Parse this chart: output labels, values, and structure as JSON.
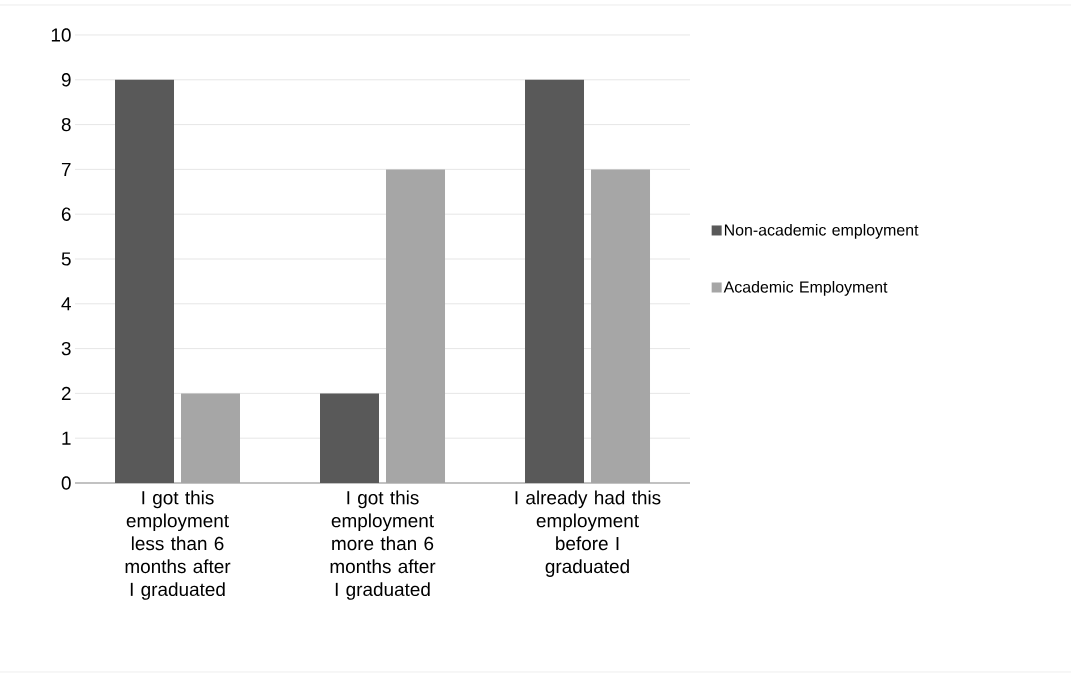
{
  "chart_data": {
    "type": "bar",
    "categories": [
      "I got this employment less than 6 months after I graduated",
      "I got this employment more than 6 months after I graduated",
      "I already had this employment before I graduated"
    ],
    "series": [
      {
        "name": "Non-academic employment",
        "color": "#595959",
        "values": [
          9,
          2,
          9
        ]
      },
      {
        "name": "Academic Employment",
        "color": "#a6a6a6",
        "values": [
          2,
          7,
          7
        ]
      }
    ],
    "ylim": [
      0,
      10
    ],
    "yticks": [
      0,
      1,
      2,
      3,
      4,
      5,
      6,
      7,
      8,
      9,
      10
    ],
    "grid": "y",
    "legend": "right"
  }
}
